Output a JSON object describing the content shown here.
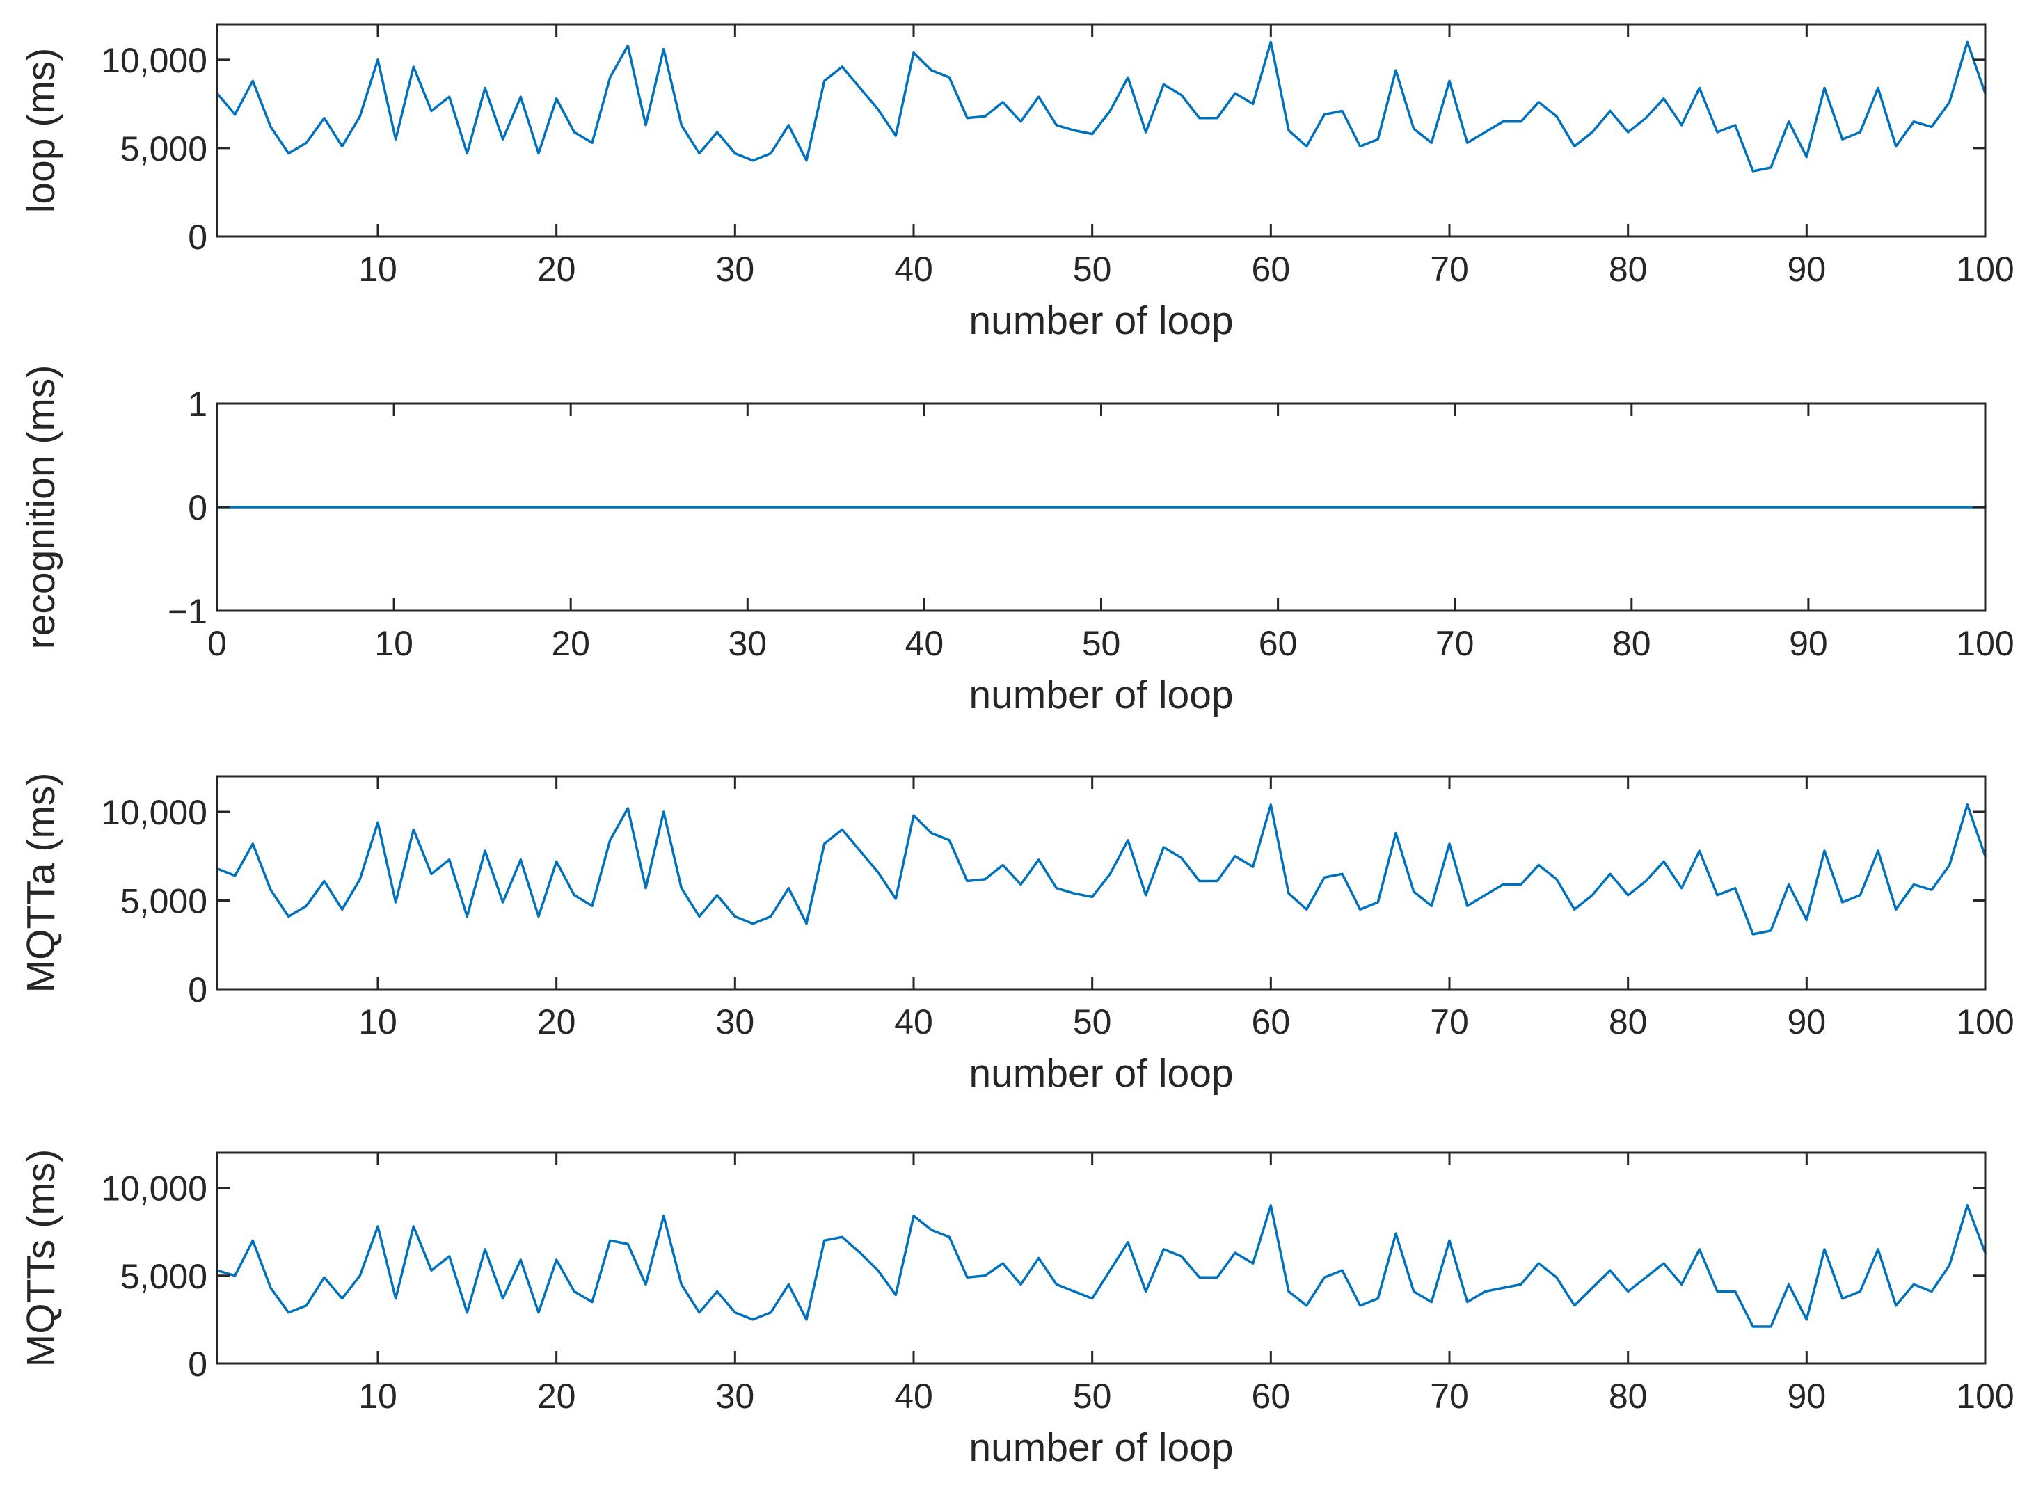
{
  "chart_data": [
    {
      "type": "line",
      "xlabel": "number of loop",
      "ylabel": "loop (ms)",
      "xlim": [
        1,
        100
      ],
      "ylim": [
        0,
        12000
      ],
      "xticks": [
        10,
        20,
        30,
        40,
        50,
        60,
        70,
        80,
        90,
        100
      ],
      "xtick_labels": [
        "10",
        "20",
        "30",
        "40",
        "50",
        "60",
        "70",
        "80",
        "90",
        "100"
      ],
      "yticks": [
        0,
        5000,
        10000
      ],
      "ytick_labels": [
        "0",
        "5,000",
        "10,000"
      ],
      "line_color": "#0072BD",
      "series": [
        {
          "x": [
            1,
            2,
            3,
            4,
            5,
            6,
            7,
            8,
            9,
            10,
            11,
            12,
            13,
            14,
            15,
            16,
            17,
            18,
            19,
            20,
            21,
            22,
            23,
            24,
            25,
            26,
            27,
            28,
            29,
            30,
            31,
            32,
            33,
            34,
            35,
            36,
            37,
            38,
            39,
            40,
            41,
            42,
            43,
            44,
            45,
            46,
            47,
            48,
            49,
            50,
            51,
            52,
            53,
            54,
            55,
            56,
            57,
            58,
            59,
            60,
            61,
            62,
            63,
            64,
            65,
            66,
            67,
            68,
            69,
            70,
            71,
            72,
            73,
            74,
            75,
            76,
            77,
            78,
            79,
            80,
            81,
            82,
            83,
            84,
            85,
            86,
            87,
            88,
            89,
            90,
            91,
            92,
            93,
            94,
            95,
            96,
            97,
            98,
            99,
            100
          ],
          "values": [
            8100,
            6900,
            8800,
            6200,
            4700,
            5300,
            6700,
            5100,
            6800,
            10000,
            5500,
            9600,
            7100,
            7900,
            4700,
            8400,
            5500,
            7900,
            4700,
            7800,
            5900,
            5300,
            9000,
            10800,
            6300,
            10600,
            6300,
            4700,
            5900,
            4700,
            4300,
            4700,
            6300,
            4300,
            8800,
            9600,
            8400,
            7200,
            5700,
            10400,
            9400,
            9000,
            6700,
            6800,
            7600,
            6500,
            7900,
            6300,
            6000,
            5800,
            7100,
            9000,
            5900,
            8600,
            8000,
            6700,
            6700,
            8100,
            7500,
            11000,
            6000,
            5100,
            6900,
            7100,
            5100,
            5500,
            9400,
            6100,
            5300,
            8800,
            5300,
            5900,
            6500,
            6500,
            7600,
            6800,
            5100,
            5900,
            7100,
            5900,
            6700,
            7800,
            6300,
            8400,
            5900,
            6300,
            3700,
            3900,
            6500,
            4500,
            8400,
            5500,
            5900,
            8400,
            5100,
            6500,
            6200,
            7600,
            11000,
            8100
          ]
        }
      ]
    },
    {
      "type": "line",
      "xlabel": "number of loop",
      "ylabel": "recognition (ms)",
      "xlim": [
        0,
        100
      ],
      "ylim": [
        -1,
        1
      ],
      "xticks": [
        0,
        10,
        20,
        30,
        40,
        50,
        60,
        70,
        80,
        90,
        100
      ],
      "xtick_labels": [
        "0",
        "10",
        "20",
        "30",
        "40",
        "50",
        "60",
        "70",
        "80",
        "90",
        "100"
      ],
      "yticks": [
        -1,
        0,
        1
      ],
      "ytick_labels": [
        "−1",
        "0",
        "1"
      ],
      "line_color": "#0072BD",
      "series": [
        {
          "x": [
            0,
            100
          ],
          "values": [
            0,
            0
          ]
        }
      ]
    },
    {
      "type": "line",
      "xlabel": "number of loop",
      "ylabel": "MQTTa (ms)",
      "xlim": [
        1,
        100
      ],
      "ylim": [
        0,
        12000
      ],
      "xticks": [
        10,
        20,
        30,
        40,
        50,
        60,
        70,
        80,
        90,
        100
      ],
      "xtick_labels": [
        "10",
        "20",
        "30",
        "40",
        "50",
        "60",
        "70",
        "80",
        "90",
        "100"
      ],
      "yticks": [
        0,
        5000,
        10000
      ],
      "ytick_labels": [
        "0",
        "5,000",
        "10,000"
      ],
      "line_color": "#0072BD",
      "series": [
        {
          "x": [
            1,
            2,
            3,
            4,
            5,
            6,
            7,
            8,
            9,
            10,
            11,
            12,
            13,
            14,
            15,
            16,
            17,
            18,
            19,
            20,
            21,
            22,
            23,
            24,
            25,
            26,
            27,
            28,
            29,
            30,
            31,
            32,
            33,
            34,
            35,
            36,
            37,
            38,
            39,
            40,
            41,
            42,
            43,
            44,
            45,
            46,
            47,
            48,
            49,
            50,
            51,
            52,
            53,
            54,
            55,
            56,
            57,
            58,
            59,
            60,
            61,
            62,
            63,
            64,
            65,
            66,
            67,
            68,
            69,
            70,
            71,
            72,
            73,
            74,
            75,
            76,
            77,
            78,
            79,
            80,
            81,
            82,
            83,
            84,
            85,
            86,
            87,
            88,
            89,
            90,
            91,
            92,
            93,
            94,
            95,
            96,
            97,
            98,
            99,
            100
          ],
          "values": [
            6800,
            6400,
            8200,
            5600,
            4100,
            4700,
            6100,
            4500,
            6200,
            9400,
            4900,
            9000,
            6500,
            7300,
            4100,
            7800,
            4900,
            7300,
            4100,
            7200,
            5300,
            4700,
            8400,
            10200,
            5700,
            10000,
            5700,
            4100,
            5300,
            4100,
            3700,
            4100,
            5700,
            3700,
            8200,
            9000,
            7800,
            6600,
            5100,
            9800,
            8800,
            8400,
            6100,
            6200,
            7000,
            5900,
            7300,
            5700,
            5400,
            5200,
            6500,
            8400,
            5300,
            8000,
            7400,
            6100,
            6100,
            7500,
            6900,
            10400,
            5400,
            4500,
            6300,
            6500,
            4500,
            4900,
            8800,
            5500,
            4700,
            8200,
            4700,
            5300,
            5900,
            5900,
            7000,
            6200,
            4500,
            5300,
            6500,
            5300,
            6100,
            7200,
            5700,
            7800,
            5300,
            5700,
            3100,
            3300,
            5900,
            3900,
            7800,
            4900,
            5300,
            7800,
            4500,
            5900,
            5600,
            7000,
            10400,
            7500
          ]
        }
      ]
    },
    {
      "type": "line",
      "xlabel": "number of loop",
      "ylabel": "MQTTs (ms)",
      "xlim": [
        1,
        100
      ],
      "ylim": [
        0,
        12000
      ],
      "xticks": [
        10,
        20,
        30,
        40,
        50,
        60,
        70,
        80,
        90,
        100
      ],
      "xtick_labels": [
        "10",
        "20",
        "30",
        "40",
        "50",
        "60",
        "70",
        "80",
        "90",
        "100"
      ],
      "yticks": [
        0,
        5000,
        10000
      ],
      "ytick_labels": [
        "0",
        "5,000",
        "10,000"
      ],
      "line_color": "#0072BD",
      "series": [
        {
          "x": [
            1,
            2,
            3,
            4,
            5,
            6,
            7,
            8,
            9,
            10,
            11,
            12,
            13,
            14,
            15,
            16,
            17,
            18,
            19,
            20,
            21,
            22,
            23,
            24,
            25,
            26,
            27,
            28,
            29,
            30,
            31,
            32,
            33,
            34,
            35,
            36,
            37,
            38,
            39,
            40,
            41,
            42,
            43,
            44,
            45,
            46,
            47,
            48,
            49,
            50,
            51,
            52,
            53,
            54,
            55,
            56,
            57,
            58,
            59,
            60,
            61,
            62,
            63,
            64,
            65,
            66,
            67,
            68,
            69,
            70,
            71,
            72,
            73,
            74,
            75,
            76,
            77,
            78,
            79,
            80,
            81,
            82,
            83,
            84,
            85,
            86,
            87,
            88,
            89,
            90,
            91,
            92,
            93,
            94,
            95,
            96,
            97,
            98,
            99,
            100
          ],
          "values": [
            5300,
            5000,
            7000,
            4300,
            2900,
            3300,
            4900,
            3700,
            5000,
            7800,
            3700,
            7800,
            5300,
            6100,
            2900,
            6500,
            3700,
            5900,
            2900,
            5900,
            4100,
            3500,
            7000,
            6800,
            4500,
            8400,
            4500,
            2900,
            4100,
            2900,
            2500,
            2900,
            4500,
            2500,
            7000,
            7200,
            6300,
            5300,
            3900,
            8400,
            7600,
            7200,
            4900,
            5000,
            5700,
            4500,
            6000,
            4500,
            4100,
            3700,
            5300,
            6900,
            4100,
            6500,
            6100,
            4900,
            4900,
            6300,
            5700,
            9000,
            4100,
            3300,
            4900,
            5300,
            3300,
            3700,
            7400,
            4100,
            3500,
            7000,
            3500,
            4100,
            4300,
            4500,
            5700,
            4900,
            3300,
            4300,
            5300,
            4100,
            4900,
            5700,
            4500,
            6500,
            4100,
            4100,
            2100,
            2100,
            4500,
            2500,
            6500,
            3700,
            4100,
            6500,
            3300,
            4500,
            4100,
            5600,
            9000,
            6300
          ]
        }
      ]
    }
  ]
}
